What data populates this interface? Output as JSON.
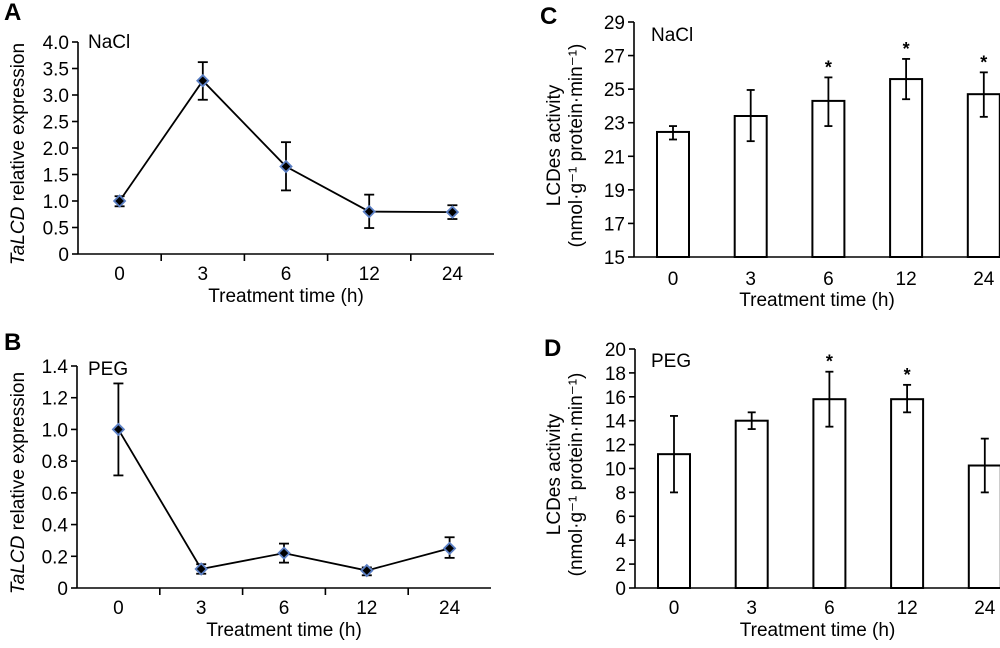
{
  "chart_data": [
    {
      "id": "A",
      "type": "line",
      "panel_label": "A",
      "treatment": "NaCl",
      "xlabel": "Treatment time (h)",
      "ylabel_italic": "TaLCD",
      "ylabel_rest": " relative expression",
      "categories": [
        "0",
        "3",
        "6",
        "12",
        "24"
      ],
      "values": [
        1.0,
        3.27,
        1.65,
        0.8,
        0.79
      ],
      "error_low": [
        0.9,
        2.91,
        1.2,
        0.49,
        0.66
      ],
      "error_high": [
        1.09,
        3.62,
        2.11,
        1.12,
        0.92
      ],
      "ylim": [
        0,
        4.0
      ],
      "yticks": [
        0,
        0.5,
        1.0,
        1.5,
        2.0,
        2.5,
        3.0,
        3.5,
        4.0
      ],
      "ytick_labels": [
        "0",
        "0.5",
        "1.0",
        "1.5",
        "2.0",
        "2.5",
        "3.0",
        "3.5",
        "4.0"
      ],
      "marker_color": "#5b7fc4",
      "grid": false
    },
    {
      "id": "B",
      "type": "line",
      "panel_label": "B",
      "treatment": "PEG",
      "xlabel": "Treatment time (h)",
      "ylabel_italic": "TaLCD",
      "ylabel_rest": " relative expression",
      "categories": [
        "0",
        "3",
        "6",
        "12",
        "24"
      ],
      "values": [
        1.0,
        0.12,
        0.22,
        0.11,
        0.25
      ],
      "error_low": [
        0.71,
        0.09,
        0.16,
        0.08,
        0.19
      ],
      "error_high": [
        1.29,
        0.15,
        0.28,
        0.13,
        0.32
      ],
      "ylim": [
        0,
        1.4
      ],
      "yticks": [
        0,
        0.2,
        0.4,
        0.6,
        0.8,
        1.0,
        1.2,
        1.4
      ],
      "ytick_labels": [
        "0",
        "0.2",
        "0.4",
        "0.6",
        "0.8",
        "1.0",
        "1.2",
        "1.4"
      ],
      "marker_color": "#5b7fc4",
      "grid": false
    },
    {
      "id": "C",
      "type": "bar",
      "panel_label": "C",
      "treatment": "NaCl",
      "xlabel": "Treatment time (h)",
      "ylabel_line1": "LCDes activity",
      "ylabel_line2": "(nmol·g⁻¹ protein·min⁻¹)",
      "categories": [
        "0",
        "3",
        "6",
        "12",
        "24"
      ],
      "values": [
        22.45,
        23.4,
        24.3,
        25.6,
        24.7
      ],
      "error_low": [
        22.0,
        21.9,
        22.8,
        24.4,
        23.35
      ],
      "error_high": [
        22.8,
        24.95,
        25.7,
        26.8,
        26.0
      ],
      "significance": [
        "",
        "",
        "*",
        "*",
        "*"
      ],
      "ylim": [
        15,
        29
      ],
      "yticks": [
        15,
        17,
        19,
        21,
        23,
        25,
        27,
        29
      ],
      "ytick_labels": [
        "15",
        "17",
        "19",
        "21",
        "23",
        "25",
        "27",
        "29"
      ],
      "grid": false
    },
    {
      "id": "D",
      "type": "bar",
      "panel_label": "D",
      "treatment": "PEG",
      "xlabel": "Treatment time (h)",
      "ylabel_line1": "LCDes activity",
      "ylabel_line2": "(nmol·g⁻¹ protein·min⁻¹)",
      "categories": [
        "0",
        "3",
        "6",
        "12",
        "24"
      ],
      "values": [
        11.2,
        14.0,
        15.8,
        15.8,
        10.25
      ],
      "error_low": [
        8.0,
        13.3,
        13.5,
        14.7,
        8.0
      ],
      "error_high": [
        14.4,
        14.7,
        18.1,
        17.0,
        12.5
      ],
      "significance": [
        "",
        "",
        "*",
        "*",
        ""
      ],
      "ylim": [
        0,
        20
      ],
      "yticks": [
        0,
        2,
        4,
        6,
        8,
        10,
        12,
        14,
        16,
        18,
        20
      ],
      "ytick_labels": [
        "0",
        "2",
        "4",
        "6",
        "8",
        "10",
        "12",
        "14",
        "16",
        "18",
        "20"
      ],
      "grid": false
    }
  ]
}
